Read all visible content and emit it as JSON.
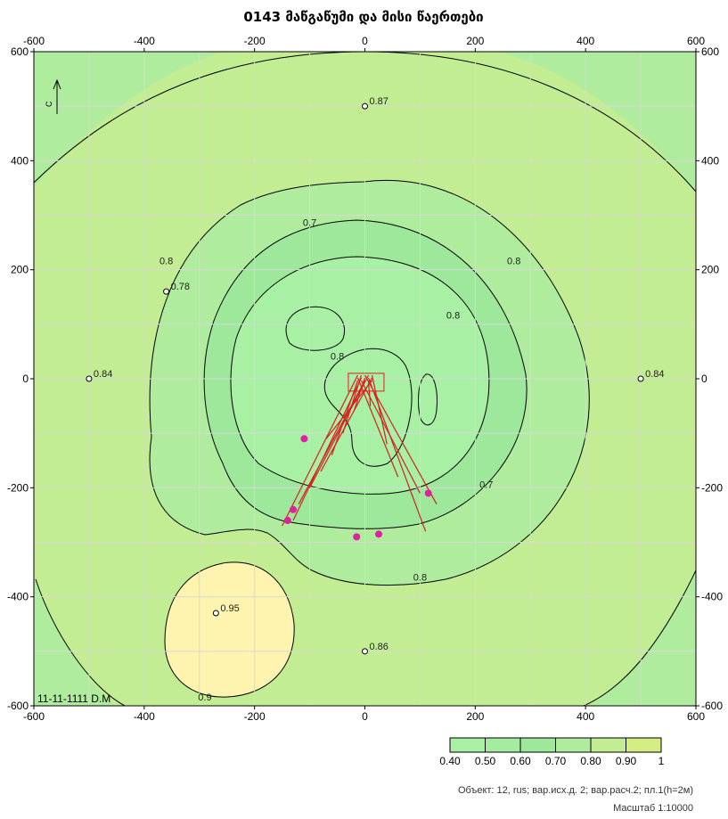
{
  "chart_data": {
    "type": "contour",
    "title": "0143 მაწგაწუმი და მისი წაერთები",
    "xlim": [
      -600,
      600
    ],
    "ylim": [
      -600,
      600
    ],
    "x_ticks": [
      "-600",
      "-400",
      "-200",
      "0",
      "200",
      "400",
      "600"
    ],
    "y_ticks": [
      "600",
      "400",
      "200",
      "0",
      "-200",
      "-400",
      "-600"
    ],
    "grid": true,
    "levels": [
      0.4,
      0.5,
      0.6,
      0.7,
      0.8,
      0.9,
      1
    ],
    "legend_labels": [
      "0.40",
      "0.50",
      "0.60",
      "0.70",
      "0.80",
      "0.90",
      "1"
    ],
    "legend_colors": [
      "#a8f0a4",
      "#a4eca0",
      "#9de89a",
      "#b0ec9e",
      "#c2ed92",
      "#d4ee84",
      "#fff3b0"
    ],
    "contour_labels": [
      {
        "text": "0.7",
        "x": -100,
        "y": 280
      },
      {
        "text": "0.8",
        "x": -360,
        "y": 210
      },
      {
        "text": "0.8",
        "x": 270,
        "y": 210
      },
      {
        "text": "0.8",
        "x": 160,
        "y": 110
      },
      {
        "text": "0.8",
        "x": -50,
        "y": 35
      },
      {
        "text": "0.7",
        "x": 220,
        "y": -200
      },
      {
        "text": "0.8",
        "x": 100,
        "y": -370
      },
      {
        "text": "0.9",
        "x": -290,
        "y": -590
      }
    ],
    "points": [
      {
        "label": "0.87",
        "x": 0,
        "y": 500
      },
      {
        "label": "0.78",
        "x": -360,
        "y": 160
      },
      {
        "label": "0.84",
        "x": -500,
        "y": 0
      },
      {
        "label": "0.84",
        "x": 500,
        "y": 0
      },
      {
        "label": "0.95",
        "x": -270,
        "y": -430
      },
      {
        "label": "0.86",
        "x": 0,
        "y": -500
      }
    ],
    "stamp": "11-11-1111 D.M",
    "footer_object": "Объект: 12, rus; вар.исх.д. 2; вар.расч.2; пл.1(h=2м)",
    "footer_scale": "Масштаб 1:10000"
  },
  "colors": {
    "bg_outer": "#c2ed92",
    "ring_08": "#b0ec9e",
    "ring_07": "#9de89a",
    "core": "#a8f0a4",
    "blob": "#fff3b0",
    "source": "#d82020",
    "receptor": "#e020a0"
  }
}
